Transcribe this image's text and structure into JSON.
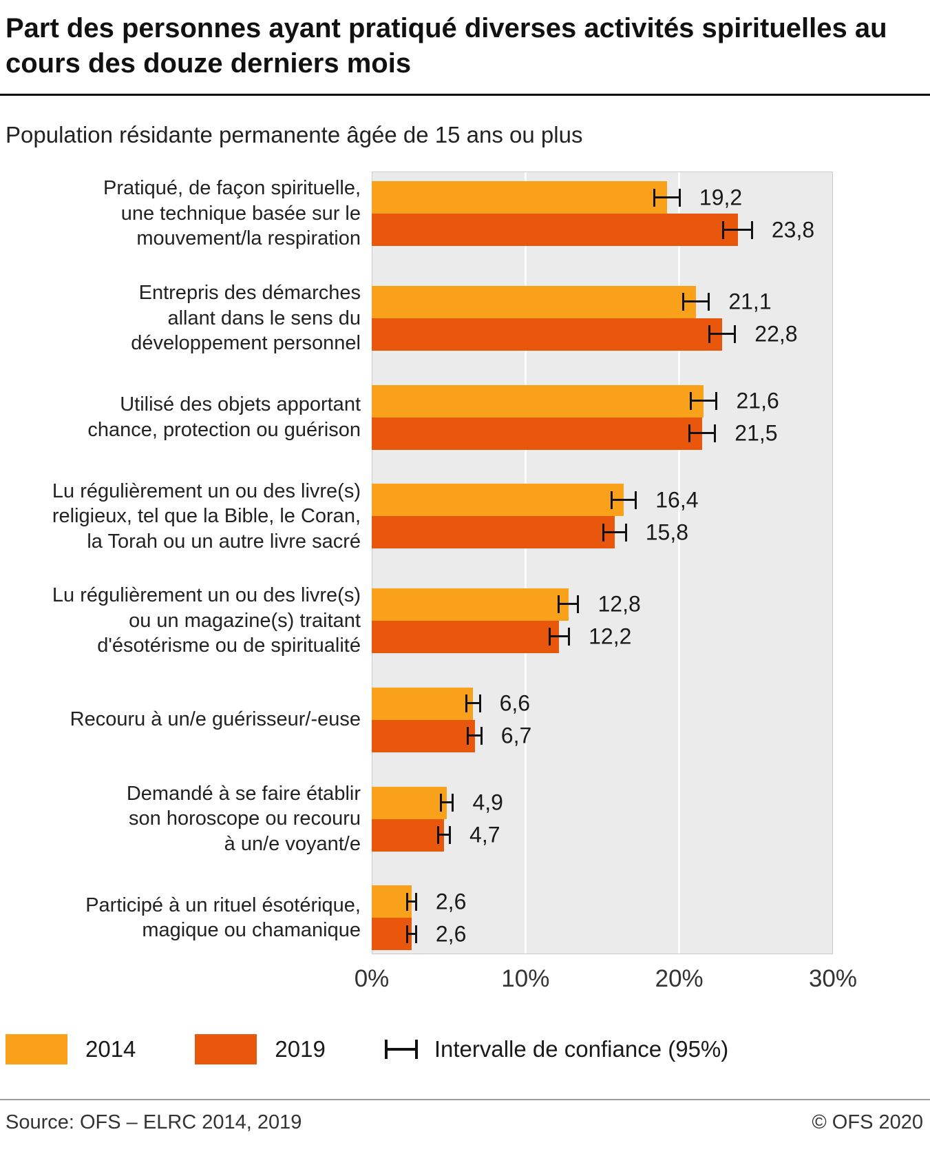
{
  "header": {
    "title": "Part des personnes ayant pratiqué diverses activités spirituelles au cours des douze derniers mois",
    "subtitle": "Population résidante permanente âgée de 15 ans ou plus"
  },
  "chart_data": {
    "type": "bar",
    "orientation": "horizontal",
    "xlim": [
      0,
      30
    ],
    "xticks": [
      "0%",
      "10%",
      "20%",
      "30%"
    ],
    "gridlines_percent": [
      10,
      20
    ],
    "plot_background": "#ebebeb",
    "gridline_color": "#ffffff",
    "error_bar_color": "#111111",
    "categories": [
      "Pratiqué, de façon spirituelle,\nune technique basée sur le\nmouvement/la respiration",
      "Entrepris des démarches\nallant dans le sens du\ndéveloppement personnel",
      "Utilisé des objets apportant\nchance, protection ou guérison",
      "Lu régulièrement un ou des livre(s)\nreligieux, tel que la Bible, le Coran,\nla Torah ou un autre livre sacré",
      "Lu régulièrement un ou des livre(s)\nou un magazine(s) traitant\nd'ésotérisme ou de spiritualité",
      "Recouru à un/e guérisseur/-euse",
      "Demandé à se faire établir\nson horoscope ou recouru\nà un/e voyant/e",
      "Participé à un rituel ésotérique,\nmagique ou chamanique"
    ],
    "series": [
      {
        "name": "2014",
        "color": "#F9A11B",
        "values": [
          19.2,
          21.1,
          21.6,
          16.4,
          12.8,
          6.6,
          4.9,
          2.6
        ],
        "labels": [
          "19,2",
          "21,1",
          "21,6",
          "16,4",
          "12,8",
          "6,6",
          "4,9",
          "2,6"
        ],
        "ci_halfwidth": [
          0.9,
          0.9,
          0.9,
          0.85,
          0.7,
          0.5,
          0.45,
          0.35
        ]
      },
      {
        "name": "2019",
        "color": "#E8570C",
        "values": [
          23.8,
          22.8,
          21.5,
          15.8,
          12.2,
          6.7,
          4.7,
          2.6
        ],
        "labels": [
          "23,8",
          "22,8",
          "21,5",
          "15,8",
          "12,2",
          "6,7",
          "4,7",
          "2,6"
        ],
        "ci_halfwidth": [
          1.0,
          0.9,
          0.9,
          0.8,
          0.7,
          0.5,
          0.45,
          0.35
        ]
      }
    ]
  },
  "legend": {
    "items": [
      {
        "label": "2014",
        "swatch": "square",
        "color": "#F9A11B"
      },
      {
        "label": "2019",
        "swatch": "square",
        "color": "#E8570C"
      },
      {
        "label": "Intervalle de confiance (95%)",
        "swatch": "error-bar",
        "color": "#111111"
      }
    ]
  },
  "footer": {
    "source": "Source: OFS – ELRC 2014, 2019",
    "copyright": "© OFS 2020"
  }
}
